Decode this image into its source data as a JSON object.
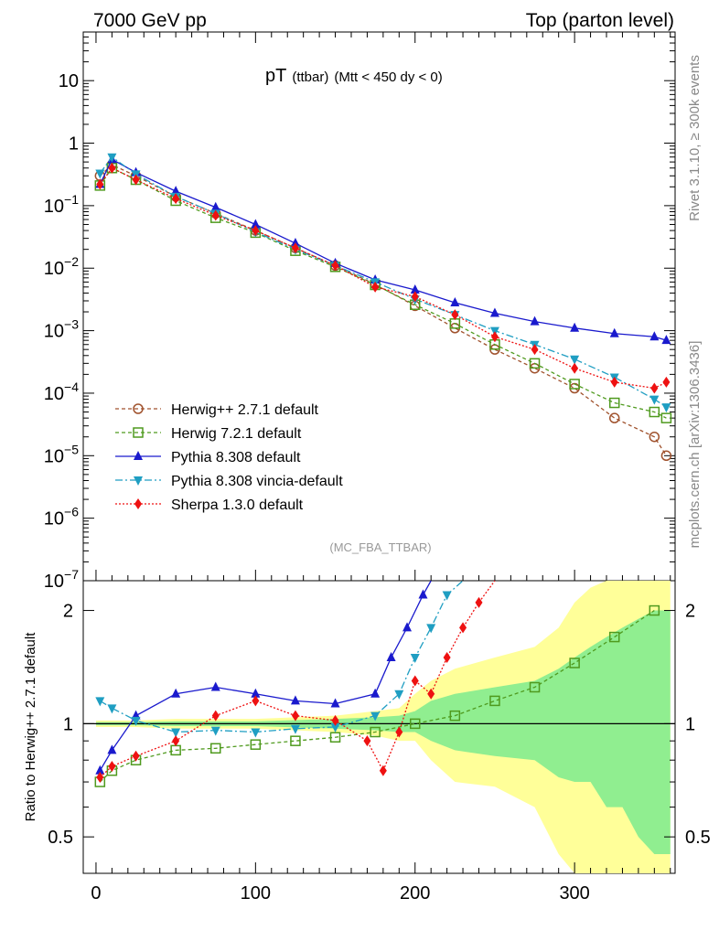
{
  "header": {
    "left": "7000 GeV pp",
    "right": "Top (parton level)"
  },
  "side_labels": {
    "rivet": "Rivet 3.1.10, ≥ 300k events",
    "mcplots": "mcplots.cern.ch [arXiv:1306.3436]"
  },
  "colors": {
    "herwigpp": "#a0522d",
    "herwig7": "#4f9a1e",
    "pythia": "#1a1acd",
    "vincia": "#1f9ec2",
    "sherpa": "#ee1111",
    "band_yellow": "#ffff99",
    "band_green": "#90ee90"
  },
  "chart_data": [
    {
      "type": "line",
      "panel": "main",
      "title_main": "pT",
      "title_sub": "(ttbar)",
      "title_cond": "(Mtt < 450 dy < 0)",
      "watermark": "(MC_FBA_TTBAR)",
      "yscale": "log",
      "xlim": [
        -8,
        363
      ],
      "ylim": [
        1e-07,
        60
      ],
      "yticks": [
        {
          "value": 10,
          "label": "10"
        },
        {
          "value": 1,
          "label": "1"
        },
        {
          "value": 0.1,
          "label": "10",
          "exp": "−1"
        },
        {
          "value": 0.01,
          "label": "10",
          "exp": "−2"
        },
        {
          "value": 0.001,
          "label": "10",
          "exp": "−3"
        },
        {
          "value": 0.0001,
          "label": "10",
          "exp": "−4"
        },
        {
          "value": 1e-05,
          "label": "10",
          "exp": "−5"
        },
        {
          "value": 1e-06,
          "label": "10",
          "exp": "−6"
        },
        {
          "value": 1e-07,
          "label": "10",
          "exp": "−7"
        }
      ],
      "legend_position": "bottom-left",
      "series": [
        {
          "name": "Herwig++ 2.7.1 default",
          "key": "herwigpp",
          "marker": "open-circle",
          "dash": "4,3",
          "x": [
            2.5,
            10,
            25,
            50,
            75,
            100,
            125,
            150,
            175,
            200,
            225,
            250,
            275,
            300,
            325,
            350,
            357.5
          ],
          "y": [
            0.3,
            0.45,
            0.3,
            0.14,
            0.075,
            0.04,
            0.021,
            0.011,
            0.0055,
            0.0025,
            0.0011,
            0.0005,
            0.00025,
            0.00012,
            4e-05,
            2e-05,
            1e-05
          ]
        },
        {
          "name": "Herwig 7.2.1 default",
          "key": "herwig7",
          "marker": "open-square",
          "dash": "4,3",
          "x": [
            2.5,
            10,
            25,
            50,
            75,
            100,
            125,
            150,
            175,
            200,
            225,
            250,
            275,
            300,
            325,
            350,
            357.5
          ],
          "y": [
            0.21,
            0.4,
            0.26,
            0.12,
            0.064,
            0.037,
            0.019,
            0.0105,
            0.0054,
            0.0026,
            0.0013,
            0.0006,
            0.0003,
            0.00014,
            7e-05,
            5e-05,
            4e-05
          ]
        },
        {
          "name": "Pythia 8.308 default",
          "key": "pythia",
          "marker": "filled-triangle-up",
          "dash": "",
          "x": [
            2.5,
            10,
            25,
            50,
            75,
            100,
            125,
            150,
            175,
            200,
            225,
            250,
            275,
            300,
            325,
            350,
            357.5
          ],
          "y": [
            0.22,
            0.55,
            0.34,
            0.17,
            0.094,
            0.05,
            0.025,
            0.012,
            0.0065,
            0.0045,
            0.0028,
            0.0019,
            0.0014,
            0.0011,
            0.0009,
            0.0008,
            0.0007
          ]
        },
        {
          "name": "Pythia 8.308 vincia-default",
          "key": "vincia",
          "marker": "filled-triangle-down",
          "dash": "8,3,2,3",
          "x": [
            2.5,
            10,
            25,
            50,
            75,
            100,
            125,
            150,
            175,
            200,
            225,
            250,
            275,
            300,
            325,
            350,
            357.5
          ],
          "y": [
            0.33,
            0.6,
            0.32,
            0.14,
            0.075,
            0.038,
            0.02,
            0.011,
            0.006,
            0.0032,
            0.0018,
            0.001,
            0.0006,
            0.00035,
            0.00018,
            8e-05,
            6e-05
          ]
        },
        {
          "name": "Sherpa 1.3.0 default",
          "key": "sherpa",
          "marker": "filled-diamond",
          "dash": "2,2",
          "x": [
            2.5,
            10,
            25,
            50,
            75,
            100,
            125,
            150,
            175,
            200,
            225,
            250,
            275,
            300,
            325,
            350,
            357.5
          ],
          "y": [
            0.22,
            0.4,
            0.26,
            0.13,
            0.07,
            0.04,
            0.021,
            0.011,
            0.005,
            0.0035,
            0.0018,
            0.0008,
            0.0005,
            0.00025,
            0.00015,
            0.00012,
            0.00015
          ]
        }
      ]
    },
    {
      "type": "line",
      "panel": "ratio",
      "ylabel": "Ratio to Herwig++ 2.7.1 default",
      "xlim": [
        -8,
        363
      ],
      "ylim": [
        0.4,
        2.4
      ],
      "yscale": "log",
      "xticks": [
        0,
        100,
        200,
        300
      ],
      "yticks": [
        0.5,
        1,
        2
      ],
      "bands": {
        "x": [
          0,
          25,
          50,
          100,
          150,
          175,
          190,
          200,
          210,
          225,
          250,
          275,
          290,
          300,
          310,
          320,
          330,
          340,
          350,
          360
        ],
        "yellow_low": [
          0.98,
          0.98,
          0.97,
          0.97,
          0.95,
          0.93,
          0.9,
          0.9,
          0.8,
          0.7,
          0.68,
          0.6,
          0.45,
          0.4,
          0.4,
          0.35,
          0.35,
          0.3,
          0.3,
          0.3
        ],
        "yellow_high": [
          1.02,
          1.02,
          1.03,
          1.03,
          1.05,
          1.08,
          1.1,
          1.2,
          1.3,
          1.4,
          1.5,
          1.6,
          1.8,
          2.1,
          2.3,
          2.5,
          2.5,
          2.5,
          2.5,
          2.5
        ],
        "green_low": [
          0.99,
          0.99,
          0.985,
          0.985,
          0.97,
          0.96,
          0.95,
          0.95,
          0.9,
          0.85,
          0.82,
          0.8,
          0.72,
          0.7,
          0.7,
          0.6,
          0.6,
          0.5,
          0.45,
          0.45
        ],
        "green_high": [
          1.01,
          1.01,
          1.015,
          1.015,
          1.03,
          1.04,
          1.05,
          1.08,
          1.15,
          1.2,
          1.25,
          1.3,
          1.4,
          1.5,
          1.6,
          1.7,
          1.8,
          1.9,
          2,
          2
        ]
      },
      "series": [
        {
          "key": "herwig7",
          "x": [
            2.5,
            10,
            25,
            50,
            75,
            100,
            125,
            150,
            175,
            200,
            225,
            250,
            275,
            300,
            325,
            350
          ],
          "y": [
            0.7,
            0.75,
            0.8,
            0.85,
            0.86,
            0.88,
            0.9,
            0.92,
            0.95,
            1.0,
            1.05,
            1.15,
            1.25,
            1.45,
            1.7,
            2.0
          ]
        },
        {
          "key": "pythia",
          "x": [
            2.5,
            10,
            25,
            50,
            75,
            100,
            125,
            150,
            175,
            185,
            195,
            205,
            210
          ],
          "y": [
            0.75,
            0.85,
            1.05,
            1.2,
            1.25,
            1.2,
            1.15,
            1.13,
            1.2,
            1.5,
            1.8,
            2.2,
            2.5
          ]
        },
        {
          "key": "vincia",
          "x": [
            2.5,
            10,
            25,
            50,
            75,
            100,
            125,
            150,
            175,
            190,
            200,
            210,
            220,
            230
          ],
          "y": [
            1.15,
            1.1,
            1.02,
            0.95,
            0.96,
            0.95,
            0.97,
            0.98,
            1.05,
            1.2,
            1.5,
            1.8,
            2.2,
            2.5
          ]
        },
        {
          "key": "sherpa",
          "x": [
            2.5,
            10,
            25,
            50,
            75,
            100,
            125,
            150,
            170,
            180,
            190,
            200,
            210,
            220,
            230,
            240,
            250
          ],
          "y": [
            0.72,
            0.77,
            0.82,
            0.9,
            1.05,
            1.15,
            1.05,
            1.02,
            0.9,
            0.75,
            0.95,
            1.3,
            1.2,
            1.5,
            1.8,
            2.1,
            2.5
          ]
        }
      ]
    }
  ]
}
